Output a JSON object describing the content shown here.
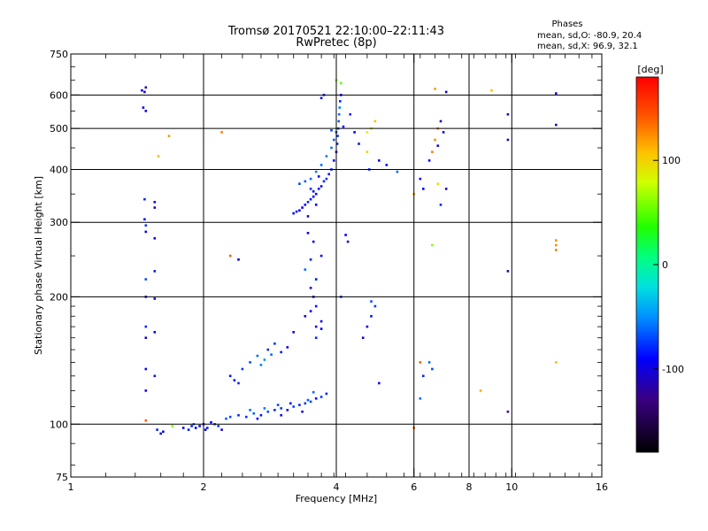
{
  "chart_data": {
    "type": "scatter",
    "title": "Tromsø 20170521 22:10:00–22:11:43",
    "subtitle": "RwPretec (8p)",
    "phases": {
      "heading": "Phases",
      "line_o": "mean, sd,O: -80.9, 20.4",
      "line_x": "mean, sd,X:  96.9, 32.1"
    },
    "xlabel": "Frequency [MHz]",
    "ylabel": "Stationary phase Virtual Height [km]",
    "x_scale": "log",
    "y_scale": "log",
    "xlim": [
      1,
      16
    ],
    "ylim": [
      75,
      750
    ],
    "x_ticks": [
      1,
      2,
      4,
      6,
      8,
      10,
      16
    ],
    "x_tick_labels": [
      "1",
      "2",
      "4",
      "6",
      "8",
      "10",
      "16"
    ],
    "y_ticks": [
      75,
      100,
      200,
      300,
      400,
      500,
      600,
      750
    ],
    "y_tick_labels": [
      "75",
      "100",
      "200",
      "300",
      "400",
      "500",
      "600",
      "750"
    ],
    "grid_x": [
      2,
      4,
      6,
      8,
      10
    ],
    "grid_y": [
      100,
      200,
      300,
      400,
      500,
      600
    ],
    "colorbar": {
      "label": "[deg]",
      "range": [
        -180,
        180
      ],
      "ticks": [
        100,
        0,
        -100
      ],
      "tick_labels": [
        "100",
        "0",
        "-100"
      ]
    },
    "points": [
      [
        1.45,
        615,
        -95
      ],
      [
        1.47,
        610,
        -100
      ],
      [
        1.48,
        625,
        -110
      ],
      [
        1.46,
        560,
        -90
      ],
      [
        1.48,
        550,
        -100
      ],
      [
        1.58,
        430,
        110
      ],
      [
        1.47,
        340,
        -80
      ],
      [
        1.47,
        305,
        -85
      ],
      [
        1.55,
        335,
        -95
      ],
      [
        1.55,
        325,
        -110
      ],
      [
        1.48,
        295,
        -75
      ],
      [
        1.48,
        285,
        -90
      ],
      [
        1.55,
        275,
        -100
      ],
      [
        1.55,
        230,
        -85
      ],
      [
        1.48,
        220,
        -70
      ],
      [
        1.48,
        200,
        -90
      ],
      [
        1.55,
        198,
        -95
      ],
      [
        1.48,
        170,
        -80
      ],
      [
        1.48,
        160,
        -100
      ],
      [
        1.55,
        165,
        -90
      ],
      [
        1.48,
        135,
        -95
      ],
      [
        1.55,
        130,
        -85
      ],
      [
        1.48,
        120,
        -100
      ],
      [
        1.48,
        102,
        140
      ],
      [
        1.57,
        97,
        -80
      ],
      [
        1.6,
        95,
        -90
      ],
      [
        1.62,
        96,
        -100
      ],
      [
        1.7,
        99,
        60
      ],
      [
        1.8,
        98,
        -90
      ],
      [
        1.85,
        97,
        -85
      ],
      [
        1.88,
        99,
        -80
      ],
      [
        1.92,
        98,
        -95
      ],
      [
        1.96,
        99,
        -90
      ],
      [
        2.0,
        100,
        -85
      ],
      [
        2.04,
        98,
        -80
      ],
      [
        2.08,
        101,
        -90
      ],
      [
        2.12,
        100,
        -70
      ],
      [
        2.2,
        97,
        -100
      ],
      [
        1.9,
        100,
        -60
      ],
      [
        2.02,
        97,
        -100
      ],
      [
        2.16,
        99,
        -75
      ],
      [
        2.25,
        103,
        -65
      ],
      [
        2.3,
        104,
        -70
      ],
      [
        2.4,
        105,
        -80
      ],
      [
        2.5,
        104,
        -75
      ],
      [
        2.6,
        106,
        -65
      ],
      [
        2.7,
        105,
        -85
      ],
      [
        2.8,
        107,
        -70
      ],
      [
        2.9,
        108,
        -80
      ],
      [
        3.0,
        109,
        -75
      ],
      [
        3.1,
        108,
        -90
      ],
      [
        3.2,
        110,
        -70
      ],
      [
        3.3,
        111,
        -80
      ],
      [
        3.4,
        112,
        -75
      ],
      [
        3.5,
        113,
        -70
      ],
      [
        3.6,
        115,
        -85
      ],
      [
        3.7,
        116,
        -75
      ],
      [
        3.8,
        118,
        -80
      ],
      [
        2.55,
        108,
        -60
      ],
      [
        2.75,
        109,
        -55
      ],
      [
        2.95,
        111,
        -70
      ],
      [
        3.15,
        112,
        -85
      ],
      [
        3.45,
        114,
        -65
      ],
      [
        3.55,
        119,
        -60
      ],
      [
        3.35,
        107,
        -100
      ],
      [
        3.0,
        105,
        -95
      ],
      [
        2.65,
        103,
        -90
      ],
      [
        2.3,
        130,
        -85
      ],
      [
        2.35,
        127,
        -90
      ],
      [
        2.4,
        125,
        -80
      ],
      [
        2.45,
        135,
        -75
      ],
      [
        2.55,
        140,
        -70
      ],
      [
        2.65,
        145,
        -60
      ],
      [
        2.7,
        138,
        -55
      ],
      [
        2.8,
        150,
        -80
      ],
      [
        2.9,
        155,
        -75
      ],
      [
        3.0,
        148,
        -85
      ],
      [
        3.1,
        152,
        -90
      ],
      [
        2.75,
        142,
        -50
      ],
      [
        2.85,
        146,
        -60
      ],
      [
        3.2,
        165,
        -95
      ],
      [
        3.4,
        180,
        -100
      ],
      [
        3.5,
        185,
        -90
      ],
      [
        3.6,
        190,
        -85
      ],
      [
        3.7,
        175,
        -95
      ],
      [
        3.6,
        170,
        -105
      ],
      [
        3.7,
        168,
        -90
      ],
      [
        3.55,
        200,
        -100
      ],
      [
        3.5,
        210,
        -95
      ],
      [
        3.6,
        220,
        -85
      ],
      [
        3.4,
        232,
        -60
      ],
      [
        3.5,
        245,
        -80
      ],
      [
        3.7,
        250,
        -90
      ],
      [
        3.55,
        270,
        -95
      ],
      [
        3.45,
        283,
        -100
      ],
      [
        3.6,
        160,
        -80
      ],
      [
        3.2,
        315,
        -90
      ],
      [
        3.25,
        318,
        -85
      ],
      [
        3.3,
        320,
        -100
      ],
      [
        3.35,
        325,
        -95
      ],
      [
        3.4,
        330,
        -90
      ],
      [
        3.45,
        335,
        -80
      ],
      [
        3.5,
        340,
        -85
      ],
      [
        3.55,
        345,
        -95
      ],
      [
        3.6,
        350,
        -90
      ],
      [
        3.65,
        360,
        -85
      ],
      [
        3.7,
        365,
        -95
      ],
      [
        3.75,
        375,
        -80
      ],
      [
        3.8,
        380,
        -75
      ],
      [
        3.85,
        390,
        -85
      ],
      [
        3.9,
        400,
        -80
      ],
      [
        3.95,
        420,
        -90
      ],
      [
        4.0,
        440,
        -85
      ],
      [
        4.02,
        460,
        -80
      ],
      [
        4.03,
        480,
        -75
      ],
      [
        4.04,
        500,
        -70
      ],
      [
        4.05,
        520,
        -65
      ],
      [
        4.06,
        540,
        -60
      ],
      [
        4.07,
        560,
        -55
      ],
      [
        4.08,
        580,
        -80
      ],
      [
        4.1,
        600,
        -90
      ],
      [
        3.3,
        370,
        -70
      ],
      [
        3.4,
        375,
        -65
      ],
      [
        3.5,
        380,
        -60
      ],
      [
        3.6,
        395,
        -55
      ],
      [
        3.7,
        410,
        -60
      ],
      [
        3.8,
        430,
        -55
      ],
      [
        3.9,
        450,
        -60
      ],
      [
        3.95,
        470,
        -65
      ],
      [
        4.0,
        490,
        -70
      ],
      [
        3.5,
        360,
        -75
      ],
      [
        3.6,
        330,
        -105
      ],
      [
        3.45,
        310,
        -110
      ],
      [
        3.55,
        355,
        -100
      ],
      [
        3.65,
        385,
        -95
      ],
      [
        4.0,
        650,
        60
      ],
      [
        4.1,
        640,
        50
      ],
      [
        4.3,
        540,
        -80
      ],
      [
        4.4,
        490,
        -90
      ],
      [
        4.5,
        460,
        -85
      ],
      [
        4.7,
        440,
        100
      ],
      [
        4.8,
        500,
        95
      ],
      [
        4.9,
        520,
        110
      ],
      [
        4.75,
        400,
        -80
      ],
      [
        5.0,
        420,
        -100
      ],
      [
        5.2,
        410,
        -95
      ],
      [
        4.7,
        490,
        85
      ],
      [
        4.2,
        280,
        -90
      ],
      [
        4.25,
        270,
        -100
      ],
      [
        4.1,
        200,
        -80
      ],
      [
        4.8,
        195,
        -70
      ],
      [
        4.9,
        190,
        -75
      ],
      [
        4.8,
        180,
        -85
      ],
      [
        4.7,
        170,
        -100
      ],
      [
        4.6,
        160,
        -110
      ],
      [
        5.0,
        125,
        -95
      ],
      [
        5.5,
        395,
        -60
      ],
      [
        6.0,
        350,
        120
      ],
      [
        6.2,
        380,
        -100
      ],
      [
        6.3,
        360,
        -90
      ],
      [
        6.5,
        420,
        -95
      ],
      [
        6.6,
        440,
        130
      ],
      [
        6.7,
        470,
        125
      ],
      [
        6.8,
        500,
        130
      ],
      [
        6.9,
        520,
        -110
      ],
      [
        7.0,
        490,
        -100
      ],
      [
        6.8,
        370,
        95
      ],
      [
        7.1,
        360,
        -120
      ],
      [
        6.9,
        330,
        -80
      ],
      [
        6.6,
        265,
        60
      ],
      [
        6.8,
        455,
        -105
      ],
      [
        6.2,
        140,
        140
      ],
      [
        6.5,
        140,
        -60
      ],
      [
        6.6,
        135,
        -70
      ],
      [
        6.3,
        130,
        -80
      ],
      [
        6.2,
        115,
        -60
      ],
      [
        6.0,
        98,
        140
      ],
      [
        6.7,
        620,
        120
      ],
      [
        7.1,
        610,
        -110
      ],
      [
        8.5,
        120,
        115
      ],
      [
        9.0,
        615,
        110
      ],
      [
        9.8,
        540,
        -120
      ],
      [
        9.8,
        470,
        -115
      ],
      [
        9.8,
        230,
        -120
      ],
      [
        9.8,
        107,
        -130
      ],
      [
        12.6,
        605,
        -100
      ],
      [
        12.6,
        510,
        -110
      ],
      [
        12.6,
        272,
        125
      ],
      [
        12.6,
        265,
        125
      ],
      [
        12.6,
        258,
        130
      ],
      [
        12.6,
        140,
        110
      ],
      [
        2.3,
        250,
        140
      ],
      [
        2.4,
        245,
        -100
      ],
      [
        2.2,
        490,
        130
      ],
      [
        1.67,
        480,
        120
      ],
      [
        3.7,
        590,
        -90
      ],
      [
        3.75,
        600,
        -80
      ],
      [
        3.9,
        495,
        -70
      ],
      [
        4.15,
        505,
        -85
      ]
    ]
  }
}
